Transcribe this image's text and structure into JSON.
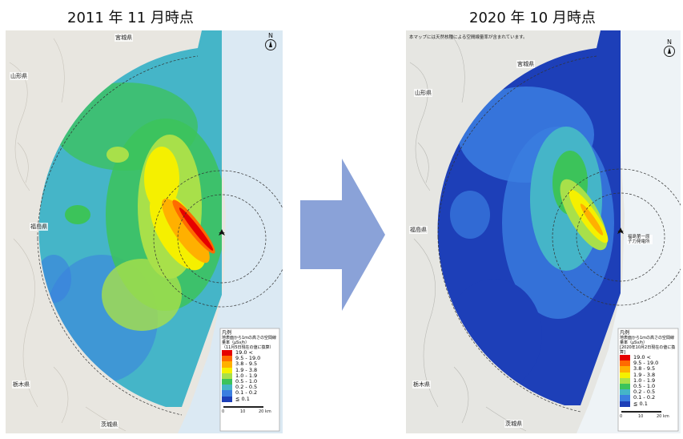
{
  "titles": {
    "left": "2011 年 11 月時点",
    "right": "2020 年 10 月時点"
  },
  "arrow_color": "#8aa2d8",
  "maps": {
    "left": {
      "place_labels": [
        "山形県",
        "宮城県",
        "福島県",
        "栃木県",
        "茨城県"
      ],
      "legend_heading": "凡例",
      "legend_desc": "地表面から1mの高さの空間線量率（μSv/h）",
      "legend_date": "（11月5日現在の値に換算）",
      "legend_items": [
        "19.0 <",
        "9.5 - 19.0",
        "3.8 - 9.5",
        "1.9 - 3.8",
        "1.0 - 1.9",
        "0.5 - 1.0",
        "0.2 - 0.5",
        "0.1 - 0.2",
        "≦ 0.1"
      ],
      "scale_labels": [
        "0",
        "10",
        "20 km"
      ]
    },
    "right": {
      "note": "本マップには天然核種による空間線量率が含まれています。",
      "place_labels": [
        "山形県",
        "宮城県",
        "福島県",
        "栃木県",
        "茨城県"
      ],
      "legend_heading": "凡例",
      "legend_desc": "地表面から1mの高さの空間線量率（μSv/h）",
      "legend_date": "[2020年10月2日現在の値に換算]",
      "legend_items": [
        "19.0 <",
        "9.5 - 19.0",
        "3.8 - 9.5",
        "1.9 - 3.8",
        "1.0 - 1.9",
        "0.5 - 1.0",
        "0.2 - 0.5",
        "0.1 - 0.2",
        "≦ 0.1"
      ],
      "scale_labels": [
        "0",
        "10",
        "20 km"
      ],
      "plant_label": "福島第一原子力発電所"
    }
  },
  "legend_colors": [
    "#e60000",
    "#ff6a00",
    "#ffb000",
    "#f5f000",
    "#a8e04a",
    "#3cc35a",
    "#45b5c8",
    "#3b7ee0",
    "#1d3fb8"
  ],
  "north_label": "N"
}
